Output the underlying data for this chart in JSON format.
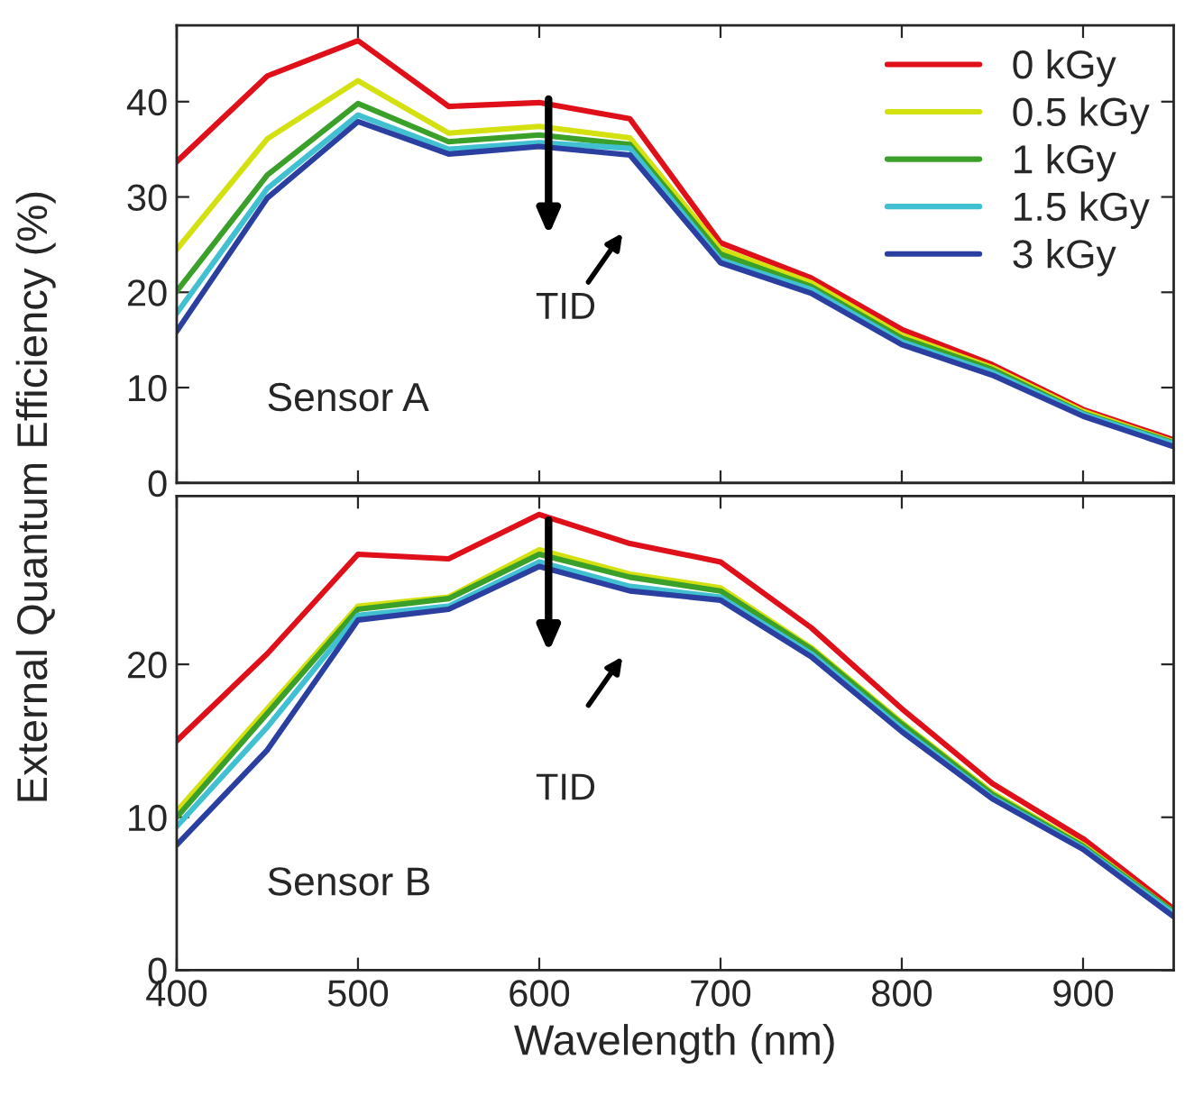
{
  "chart_data": [
    {
      "type": "line",
      "ylabel": "External Quantum Efficiency (%)",
      "x": [
        400,
        450,
        500,
        550,
        600,
        650,
        700,
        750,
        800,
        850,
        900,
        950
      ],
      "xlim": [
        400,
        950
      ],
      "xticks": [
        400,
        500,
        600,
        700,
        800,
        900
      ],
      "ylim": [
        0,
        48
      ],
      "yticks": [
        0,
        10,
        20,
        30,
        40
      ],
      "tick_labels": "y",
      "legend": "top right",
      "grid": false,
      "series": [
        {
          "name": "0 kGy",
          "color": "#e0101a",
          "values": [
            33.7,
            42.7,
            46.4,
            39.5,
            39.9,
            38.2,
            25.2,
            21.5,
            16.1,
            12.4,
            7.7,
            4.5
          ]
        },
        {
          "name": "0.5 kGy",
          "color": "#d4e010",
          "values": [
            24.5,
            36.1,
            42.2,
            36.7,
            37.4,
            36.2,
            24.5,
            21.0,
            15.5,
            12.1,
            7.5,
            4.3
          ]
        },
        {
          "name": "1 kGy",
          "color": "#3aa02a",
          "values": [
            20.1,
            32.3,
            39.8,
            35.8,
            36.5,
            35.5,
            24.0,
            20.6,
            15.2,
            11.9,
            7.3,
            4.2
          ]
        },
        {
          "name": "1.5 kGy",
          "color": "#40c0d0",
          "values": [
            17.8,
            30.9,
            38.6,
            35.0,
            35.7,
            35.1,
            23.4,
            20.3,
            14.8,
            11.6,
            7.2,
            4.1
          ]
        },
        {
          "name": "3 kGy",
          "color": "#2a3fa0",
          "values": [
            15.9,
            29.9,
            37.9,
            34.5,
            35.3,
            34.4,
            23.1,
            19.9,
            14.5,
            11.3,
            7.0,
            3.8
          ]
        }
      ],
      "annotations": [
        "TID",
        "Sensor A"
      ]
    },
    {
      "type": "line",
      "xlabel": "Wavelength (nm)",
      "x": [
        400,
        450,
        500,
        550,
        600,
        650,
        700,
        750,
        800,
        850,
        900,
        950
      ],
      "xlim": [
        400,
        950
      ],
      "xticks": [
        400,
        500,
        600,
        700,
        800,
        900
      ],
      "ylim": [
        0,
        31
      ],
      "yticks": [
        0,
        10,
        20
      ],
      "grid": false,
      "series": [
        {
          "color": "#e0101a",
          "values": [
            15.0,
            20.7,
            27.2,
            26.9,
            29.8,
            27.9,
            26.7,
            22.4,
            17.1,
            12.2,
            8.6,
            4.0
          ]
        },
        {
          "color": "#d4e010",
          "values": [
            10.4,
            17.1,
            23.8,
            24.4,
            27.5,
            25.9,
            25.0,
            21.1,
            16.2,
            11.6,
            8.2,
            3.8
          ]
        },
        {
          "color": "#3aa02a",
          "values": [
            10.0,
            16.8,
            23.6,
            24.3,
            27.2,
            25.7,
            24.8,
            21.0,
            16.1,
            11.5,
            8.1,
            3.8
          ]
        },
        {
          "color": "#40c0d0",
          "values": [
            9.4,
            15.9,
            23.2,
            23.8,
            26.7,
            25.1,
            24.4,
            20.7,
            15.8,
            11.3,
            8.0,
            3.7
          ]
        },
        {
          "color": "#2a3fa0",
          "values": [
            8.2,
            14.4,
            22.9,
            23.6,
            26.4,
            24.8,
            24.2,
            20.5,
            15.6,
            11.2,
            7.9,
            3.5
          ]
        }
      ],
      "annotations": [
        "TID",
        "Sensor B"
      ]
    }
  ]
}
